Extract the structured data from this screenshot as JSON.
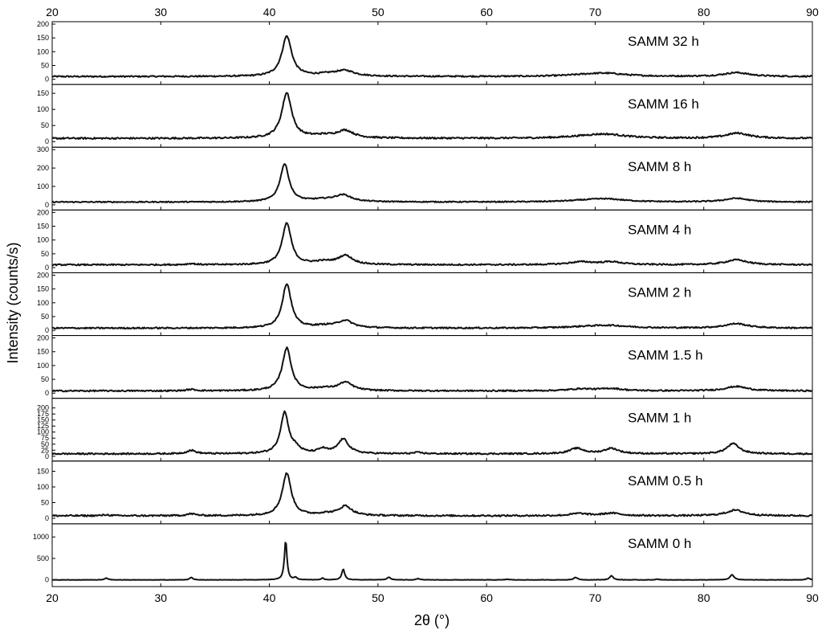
{
  "chart_data": {
    "type": "line",
    "layout": "stacked-panels",
    "xlabel": "2θ (°)",
    "ylabel": "Intensity (counts/s)",
    "xlim": [
      20,
      90
    ],
    "x_ticks": [
      20,
      30,
      40,
      50,
      60,
      70,
      80,
      90
    ],
    "x_ticks_top": [
      20,
      30,
      40,
      50,
      60,
      70,
      80,
      90
    ],
    "line_color": "#111111",
    "grid": false,
    "panels": [
      {
        "label": "SAMM 32 h",
        "ylim": [
          -10,
          200
        ],
        "y_ticks": [
          0,
          50,
          100,
          150,
          200
        ],
        "baseline": 10,
        "peaks": [
          [
            41.6,
            145,
            0.55
          ],
          [
            47.0,
            18,
            1.0
          ],
          [
            45.5,
            8,
            1.5
          ],
          [
            69.5,
            6,
            2.5
          ],
          [
            71.2,
            8,
            2.0
          ],
          [
            83.0,
            14,
            1.4
          ]
        ],
        "noise": 2.5
      },
      {
        "label": "SAMM 16 h",
        "ylim": [
          -10,
          170
        ],
        "y_ticks": [
          0,
          50,
          100,
          150
        ],
        "baseline": 10,
        "peaks": [
          [
            41.6,
            140,
            0.55
          ],
          [
            47.0,
            22,
            0.9
          ],
          [
            45.0,
            8,
            1.5
          ],
          [
            69.5,
            6,
            2.5
          ],
          [
            71.2,
            9,
            2.0
          ],
          [
            83.1,
            16,
            1.3
          ]
        ],
        "noise": 2.5
      },
      {
        "label": "SAMM 8 h",
        "ylim": [
          -15,
          300
        ],
        "y_ticks": [
          0,
          100,
          200,
          300
        ],
        "baseline": 15,
        "peaks": [
          [
            41.4,
            205,
            0.5
          ],
          [
            46.8,
            35,
            0.9
          ],
          [
            45.0,
            12,
            1.5
          ],
          [
            69.5,
            8,
            2.5
          ],
          [
            71.2,
            12,
            2.0
          ],
          [
            83.0,
            20,
            1.3
          ]
        ],
        "noise": 3
      },
      {
        "label": "SAMM 4 h",
        "ylim": [
          -10,
          200
        ],
        "y_ticks": [
          0,
          50,
          100,
          150,
          200
        ],
        "baseline": 10,
        "peaks": [
          [
            32.8,
            4,
            0.5
          ],
          [
            41.6,
            150,
            0.5
          ],
          [
            47.0,
            32,
            0.8
          ],
          [
            45.0,
            10,
            1.2
          ],
          [
            68.7,
            10,
            1.4
          ],
          [
            71.5,
            10,
            1.2
          ],
          [
            83.0,
            18,
            1.2
          ]
        ],
        "noise": 2.5
      },
      {
        "label": "SAMM 2 h",
        "ylim": [
          -10,
          200
        ],
        "y_ticks": [
          0,
          50,
          100,
          150,
          200
        ],
        "baseline": 8,
        "peaks": [
          [
            41.6,
            160,
            0.5
          ],
          [
            47.0,
            25,
            0.8
          ],
          [
            45.2,
            8,
            1.4
          ],
          [
            69.5,
            5,
            2.5
          ],
          [
            71.5,
            7,
            2.0
          ],
          [
            83.0,
            16,
            1.3
          ]
        ],
        "noise": 2.5
      },
      {
        "label": "SAMM 1.5 h",
        "ylim": [
          -10,
          200
        ],
        "y_ticks": [
          0,
          50,
          100,
          150,
          200
        ],
        "baseline": 8,
        "peaks": [
          [
            32.8,
            5,
            0.5
          ],
          [
            41.6,
            155,
            0.5
          ],
          [
            47.0,
            30,
            0.8
          ],
          [
            45.0,
            8,
            1.0
          ],
          [
            68.7,
            7,
            1.4
          ],
          [
            71.5,
            8,
            1.2
          ],
          [
            83.0,
            16,
            1.2
          ]
        ],
        "noise": 2.5
      },
      {
        "label": "SAMM 1 h",
        "ylim": [
          -10,
          230
        ],
        "y_ticks": [
          0,
          25,
          50,
          75,
          100,
          125,
          150,
          175,
          200
        ],
        "baseline": 10,
        "peaks": [
          [
            32.8,
            14,
            0.5
          ],
          [
            41.4,
            170,
            0.45
          ],
          [
            42.4,
            20,
            0.5
          ],
          [
            44.9,
            18,
            0.5
          ],
          [
            46.8,
            60,
            0.6
          ],
          [
            53.7,
            5,
            0.5
          ],
          [
            68.3,
            22,
            0.8
          ],
          [
            71.5,
            22,
            0.8
          ],
          [
            82.7,
            42,
            0.7
          ]
        ],
        "noise": 3
      },
      {
        "label": "SAMM 0.5 h",
        "ylim": [
          -10,
          175
        ],
        "y_ticks": [
          0,
          50,
          100,
          150
        ],
        "baseline": 8,
        "peaks": [
          [
            25.0,
            3,
            0.4
          ],
          [
            32.8,
            6,
            0.5
          ],
          [
            41.6,
            135,
            0.5
          ],
          [
            47.0,
            30,
            0.7
          ],
          [
            45.2,
            6,
            1.0
          ],
          [
            68.5,
            7,
            0.9
          ],
          [
            71.5,
            8,
            1.0
          ],
          [
            82.9,
            18,
            1.0
          ]
        ],
        "noise": 2.5
      },
      {
        "label": "SAMM 0 h",
        "ylim": [
          -100,
          1250
        ],
        "y_ticks": [
          0,
          500,
          1000
        ],
        "baseline": 0,
        "peaks": [
          [
            25.0,
            40,
            0.18
          ],
          [
            32.8,
            55,
            0.18
          ],
          [
            41.5,
            920,
            0.14
          ],
          [
            42.4,
            50,
            0.15
          ],
          [
            44.9,
            40,
            0.15
          ],
          [
            46.8,
            250,
            0.16
          ],
          [
            51.0,
            60,
            0.2
          ],
          [
            53.7,
            30,
            0.18
          ],
          [
            61.9,
            15,
            0.2
          ],
          [
            68.2,
            60,
            0.2
          ],
          [
            71.5,
            95,
            0.2
          ],
          [
            75.7,
            15,
            0.2
          ],
          [
            82.6,
            120,
            0.22
          ],
          [
            89.6,
            40,
            0.2
          ]
        ],
        "noise": 4
      }
    ]
  }
}
